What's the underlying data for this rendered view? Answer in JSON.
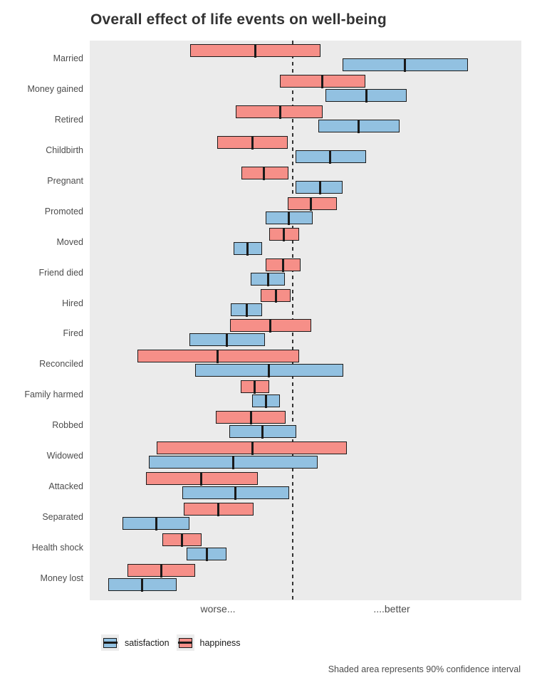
{
  "title": "Overall effect of life events on well-being",
  "footnote": "Shaded area represents 90% confidence interval",
  "colors": {
    "satisfaction": "#92C1E1",
    "happiness": "#F68F88",
    "panel_background": "#EBEBEB",
    "bar_border": "#1A1A1A",
    "reference_line": "#333333",
    "title_text": "#333333",
    "axis_text": "#4D4D4D"
  },
  "legend": {
    "items": [
      {
        "label": "satisfaction",
        "series": "satisfaction"
      },
      {
        "label": "happiness",
        "series": "happiness"
      }
    ]
  },
  "x_axis": {
    "tick_labels": [
      {
        "label": "worse...",
        "value": -1.05
      },
      {
        "label": "....better",
        "value": 1.39
      }
    ]
  },
  "chart_data": {
    "type": "crossbar",
    "title": "Overall effect of life events on well-being",
    "xlabel": "",
    "ylabel": "",
    "xlim": [
      -2.85,
      3.21
    ],
    "reference_line_x": 0,
    "grid": false,
    "legend_position": "bottom-left",
    "note": "Intervals are [lo, mid, hi] in arbitrary well-being units; 0 = dashed no-effect line; shaded area is 90% confidence interval",
    "categories": [
      "Married",
      "Money gained",
      "Retired",
      "Childbirth",
      "Pregnant",
      "Promoted",
      "Moved",
      "Friend died",
      "Hired",
      "Fired",
      "Reconciled",
      "Family harmed",
      "Robbed",
      "Widowed",
      "Attacked",
      "Separated",
      "Health shock",
      "Money lost"
    ],
    "series": [
      {
        "name": "happiness",
        "color": "#F68F88",
        "intervals": [
          [
            -1.44,
            -0.52,
            0.39
          ],
          [
            -0.18,
            0.42,
            1.02
          ],
          [
            -0.8,
            -0.17,
            0.42
          ],
          [
            -1.06,
            -0.57,
            -0.07
          ],
          [
            -0.72,
            -0.41,
            -0.06
          ],
          [
            -0.07,
            0.25,
            0.62
          ],
          [
            -0.33,
            -0.12,
            0.09
          ],
          [
            -0.38,
            -0.14,
            0.11
          ],
          [
            -0.45,
            -0.24,
            -0.03
          ],
          [
            -0.88,
            -0.32,
            0.26
          ],
          [
            -2.18,
            -1.05,
            0.09
          ],
          [
            -0.73,
            -0.54,
            -0.33
          ],
          [
            -1.08,
            -0.59,
            -0.1
          ],
          [
            -1.91,
            -0.56,
            0.76
          ],
          [
            -2.06,
            -1.28,
            -0.49
          ],
          [
            -1.53,
            -1.05,
            -0.55
          ],
          [
            -1.83,
            -1.56,
            -1.28
          ],
          [
            -2.32,
            -1.84,
            -1.37
          ]
        ]
      },
      {
        "name": "satisfaction",
        "color": "#92C1E1",
        "intervals": [
          [
            0.7,
            1.57,
            2.46
          ],
          [
            0.46,
            1.04,
            1.6
          ],
          [
            0.36,
            0.93,
            1.5
          ],
          [
            0.04,
            0.52,
            1.03
          ],
          [
            0.04,
            0.39,
            0.7
          ],
          [
            -0.38,
            -0.05,
            0.28
          ],
          [
            -0.83,
            -0.63,
            -0.43
          ],
          [
            -0.59,
            -0.34,
            -0.11
          ],
          [
            -0.87,
            -0.64,
            -0.43
          ],
          [
            -1.45,
            -0.93,
            -0.39
          ],
          [
            -1.37,
            -0.33,
            0.71
          ],
          [
            -0.57,
            -0.38,
            -0.18
          ],
          [
            -0.89,
            -0.42,
            0.05
          ],
          [
            -2.02,
            -0.83,
            0.35
          ],
          [
            -1.55,
            -0.8,
            -0.05
          ],
          [
            -2.39,
            -1.92,
            -1.45
          ],
          [
            -1.49,
            -1.2,
            -0.93
          ],
          [
            -2.59,
            -2.11,
            -1.63
          ]
        ]
      }
    ]
  }
}
